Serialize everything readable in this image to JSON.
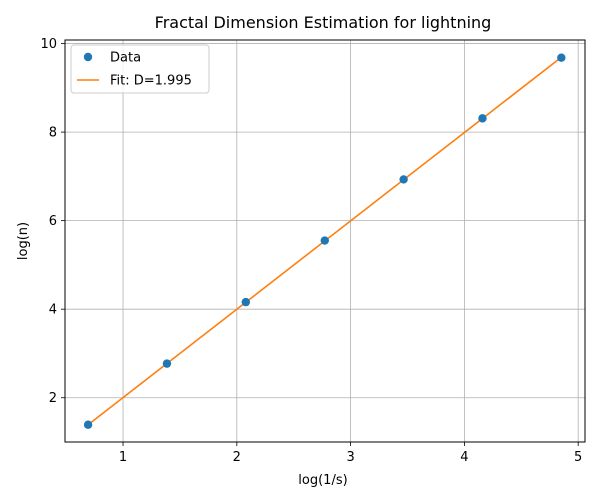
{
  "chart_data": {
    "type": "scatter",
    "title": "Fractal Dimension Estimation for lightning",
    "xlabel": "log(1/s)",
    "ylabel": "log(n)",
    "xlim": [
      0.49,
      5.06
    ],
    "ylim": [
      1.0,
      10.08
    ],
    "xticks": [
      1,
      2,
      3,
      4,
      5
    ],
    "yticks": [
      2,
      4,
      6,
      8,
      10
    ],
    "grid": true,
    "legend_position": "top-left",
    "series": [
      {
        "name": "Data",
        "kind": "points",
        "color": "#1f77b4",
        "x": [
          0.693,
          1.386,
          2.079,
          2.773,
          3.466,
          4.159,
          4.852
        ],
        "y": [
          1.39,
          2.77,
          4.16,
          5.55,
          6.93,
          8.31,
          9.68
        ]
      },
      {
        "name": "Fit: D=1.995",
        "kind": "line",
        "color": "#ff7f0e",
        "x": [
          0.693,
          4.852
        ],
        "y": [
          1.39,
          9.69
        ]
      }
    ]
  }
}
